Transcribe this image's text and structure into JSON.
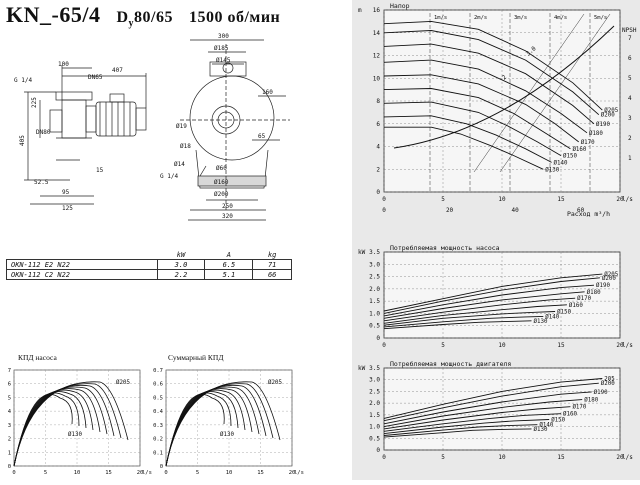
{
  "header": {
    "model": "KN_-65/4",
    "dn_prefix": "D",
    "dn_sub": "y",
    "dn_value": "80/65",
    "speed": "1500 об/мин"
  },
  "dimensions": {
    "side_view": [
      "100",
      "407",
      "DN65",
      "G 1/4",
      "225",
      "405",
      "DN80",
      "52.5",
      "95",
      "125",
      "15"
    ],
    "front_view": [
      "300",
      "Ø185",
      "Ø145",
      "Ø19",
      "160",
      "65",
      "Ø14",
      "G 1/4",
      "Ø60",
      "Ø160",
      "Ø200",
      "250",
      "320",
      "Ø18"
    ]
  },
  "specs": {
    "headers": [
      "",
      "kW",
      "A",
      "kg"
    ],
    "rows": [
      [
        "OKN-112 E2 N22",
        "3.0",
        "6.5",
        "71"
      ],
      [
        "OKN-112 C2 N22",
        "2.2",
        "5.1",
        "66"
      ]
    ]
  },
  "efficiency_pump": {
    "title": "КПД насоса",
    "y_ticks": [
      "7",
      "6",
      "5",
      "4",
      "3",
      "2",
      "1",
      "0"
    ],
    "x_ticks": [
      "0",
      "5",
      "10",
      "15",
      "20"
    ],
    "x_unit": "l/s",
    "max_label": "Ø205",
    "min_label": "Ø130"
  },
  "efficiency_total": {
    "title": "Суммарный КПД",
    "y_ticks": [
      "0.7",
      "0.6",
      "0.5",
      "0.4",
      "0.3",
      "0.2",
      "0.1",
      "0"
    ],
    "x_ticks": [
      "0",
      "5",
      "10",
      "15",
      "20"
    ],
    "x_unit": "l/s",
    "max_label": "Ø205",
    "min_label": "Ø130"
  },
  "chart_data": [
    {
      "type": "line",
      "title": "Напор",
      "ylabel": "m",
      "xlabel": "l/s",
      "secondary_xlabel": "Расход m³/h",
      "ylim": [
        0,
        16
      ],
      "xlim": [
        0,
        20
      ],
      "y_ticks": [
        "16",
        "14",
        "12",
        "10",
        "8",
        "6",
        "4",
        "2",
        "0"
      ],
      "x_ticks": [
        "0",
        "5",
        "10",
        "15",
        "20"
      ],
      "secondary_x_ticks": [
        "0",
        "20",
        "40",
        "60"
      ],
      "npsh_ticks": [
        "7",
        "6",
        "5",
        "4",
        "3",
        "2",
        "1"
      ],
      "npsh_label": "NPSH m",
      "velocity_labels": [
        "1m/s",
        "2m/s",
        "3m/s",
        "4m/s",
        "5m/s"
      ],
      "diagonal_labels": [
        "2",
        "3.0"
      ],
      "grid": true,
      "series": [
        {
          "name": "Ø205",
          "x": [
            0,
            4,
            8,
            12,
            16,
            18.5
          ],
          "y": [
            14.8,
            15.0,
            14.3,
            12.4,
            9.6,
            7.2
          ]
        },
        {
          "name": "Ø200",
          "x": [
            0,
            4,
            8,
            12,
            16,
            18.2
          ],
          "y": [
            14.0,
            14.2,
            13.4,
            11.6,
            8.8,
            6.8
          ]
        },
        {
          "name": "Ø190",
          "x": [
            0,
            4,
            8,
            12,
            16,
            17.8
          ],
          "y": [
            12.8,
            13.0,
            12.2,
            10.4,
            7.6,
            6.0
          ]
        },
        {
          "name": "Ø180",
          "x": [
            0,
            4,
            8,
            12,
            15,
            17.2
          ],
          "y": [
            11.4,
            11.6,
            10.8,
            8.9,
            6.9,
            5.2
          ]
        },
        {
          "name": "Ø170",
          "x": [
            0,
            4,
            8,
            12,
            14.5,
            16.5
          ],
          "y": [
            10.2,
            10.3,
            9.5,
            7.7,
            6.0,
            4.4
          ]
        },
        {
          "name": "Ø160",
          "x": [
            0,
            4,
            8,
            11,
            13.5,
            15.8
          ],
          "y": [
            9.0,
            9.1,
            8.3,
            6.9,
            5.3,
            3.8
          ]
        },
        {
          "name": "Ø150",
          "x": [
            0,
            4,
            8,
            10.5,
            13,
            15
          ],
          "y": [
            7.8,
            7.9,
            7.0,
            5.8,
            4.4,
            3.2
          ]
        },
        {
          "name": "Ø140",
          "x": [
            0,
            4,
            7,
            9.5,
            12,
            14.2
          ],
          "y": [
            6.6,
            6.7,
            6.0,
            5.0,
            3.8,
            2.6
          ]
        },
        {
          "name": "Ø130",
          "x": [
            0,
            4,
            6.5,
            9,
            11,
            13.5
          ],
          "y": [
            5.7,
            5.7,
            5.1,
            4.1,
            3.2,
            2.0
          ]
        }
      ]
    },
    {
      "type": "line",
      "title": "Потребляемая мощность насоса",
      "ylabel": "kW",
      "xlabel": "l/s",
      "ylim": [
        0,
        3.5
      ],
      "xlim": [
        0,
        20
      ],
      "y_ticks": [
        "3.5",
        "3.0",
        "2.5",
        "2.0",
        "1.5",
        "1.0",
        "0.5",
        "0"
      ],
      "x_ticks": [
        "0",
        "5",
        "10",
        "15",
        "20"
      ],
      "grid": true,
      "series": [
        {
          "name": "Ø205",
          "x": [
            0,
            5,
            10,
            15,
            18.5
          ],
          "y": [
            1.1,
            1.6,
            2.1,
            2.45,
            2.6
          ]
        },
        {
          "name": "Ø200",
          "x": [
            0,
            5,
            10,
            15,
            18.3
          ],
          "y": [
            1.0,
            1.5,
            1.95,
            2.3,
            2.45
          ]
        },
        {
          "name": "Ø190",
          "x": [
            0,
            5,
            10,
            15,
            17.8
          ],
          "y": [
            0.9,
            1.35,
            1.75,
            2.05,
            2.15
          ]
        },
        {
          "name": "Ø180",
          "x": [
            0,
            5,
            10,
            15,
            17.0
          ],
          "y": [
            0.8,
            1.2,
            1.55,
            1.8,
            1.88
          ]
        },
        {
          "name": "Ø170",
          "x": [
            0,
            5,
            10,
            14,
            16.2
          ],
          "y": [
            0.7,
            1.05,
            1.35,
            1.55,
            1.62
          ]
        },
        {
          "name": "Ø160",
          "x": [
            0,
            5,
            10,
            13,
            15.5
          ],
          "y": [
            0.6,
            0.92,
            1.15,
            1.28,
            1.35
          ]
        },
        {
          "name": "Ø150",
          "x": [
            0,
            5,
            10,
            13,
            14.5
          ],
          "y": [
            0.52,
            0.8,
            0.98,
            1.05,
            1.08
          ]
        },
        {
          "name": "Ø140",
          "x": [
            0,
            5,
            9,
            12,
            13.5
          ],
          "y": [
            0.45,
            0.66,
            0.8,
            0.86,
            0.88
          ]
        },
        {
          "name": "Ø130",
          "x": [
            0,
            5,
            8,
            11,
            12.5
          ],
          "y": [
            0.38,
            0.55,
            0.64,
            0.68,
            0.7
          ]
        }
      ]
    },
    {
      "type": "line",
      "title": "Потребляемая мощность двигателя",
      "ylabel": "kW",
      "xlabel": "l/s",
      "ylim": [
        0,
        3.5
      ],
      "xlim": [
        0,
        20
      ],
      "y_ticks": [
        "3.5",
        "3.0",
        "2.5",
        "2.0",
        "1.5",
        "1.0",
        "0.5",
        "0"
      ],
      "x_ticks": [
        "0",
        "5",
        "10",
        "15",
        "20"
      ],
      "grid": true,
      "series": [
        {
          "name": "205",
          "x": [
            0,
            5,
            10,
            15,
            18.5
          ],
          "y": [
            1.35,
            1.95,
            2.5,
            2.9,
            3.05
          ]
        },
        {
          "name": "Ø200",
          "x": [
            0,
            5,
            10,
            15,
            18.2
          ],
          "y": [
            1.25,
            1.8,
            2.3,
            2.7,
            2.85
          ]
        },
        {
          "name": "Ø190",
          "x": [
            0,
            5,
            10,
            15,
            17.6
          ],
          "y": [
            1.12,
            1.62,
            2.05,
            2.38,
            2.48
          ]
        },
        {
          "name": "Ø180",
          "x": [
            0,
            5,
            10,
            14,
            16.8
          ],
          "y": [
            1.0,
            1.45,
            1.82,
            2.05,
            2.15
          ]
        },
        {
          "name": "Ø170",
          "x": [
            0,
            5,
            10,
            13,
            15.8
          ],
          "y": [
            0.9,
            1.28,
            1.6,
            1.75,
            1.85
          ]
        },
        {
          "name": "Ø160",
          "x": [
            0,
            5,
            9,
            12,
            15.0
          ],
          "y": [
            0.8,
            1.12,
            1.35,
            1.48,
            1.55
          ]
        },
        {
          "name": "Ø150",
          "x": [
            0,
            5,
            8.5,
            11,
            14.0
          ],
          "y": [
            0.7,
            0.98,
            1.15,
            1.24,
            1.3
          ]
        },
        {
          "name": "Ø140",
          "x": [
            0,
            5,
            8,
            10.5,
            13.0
          ],
          "y": [
            0.62,
            0.85,
            0.98,
            1.04,
            1.08
          ]
        },
        {
          "name": "Ø130",
          "x": [
            0,
            5,
            7.5,
            10,
            12.5
          ],
          "y": [
            0.55,
            0.74,
            0.84,
            0.88,
            0.9
          ]
        }
      ]
    }
  ]
}
